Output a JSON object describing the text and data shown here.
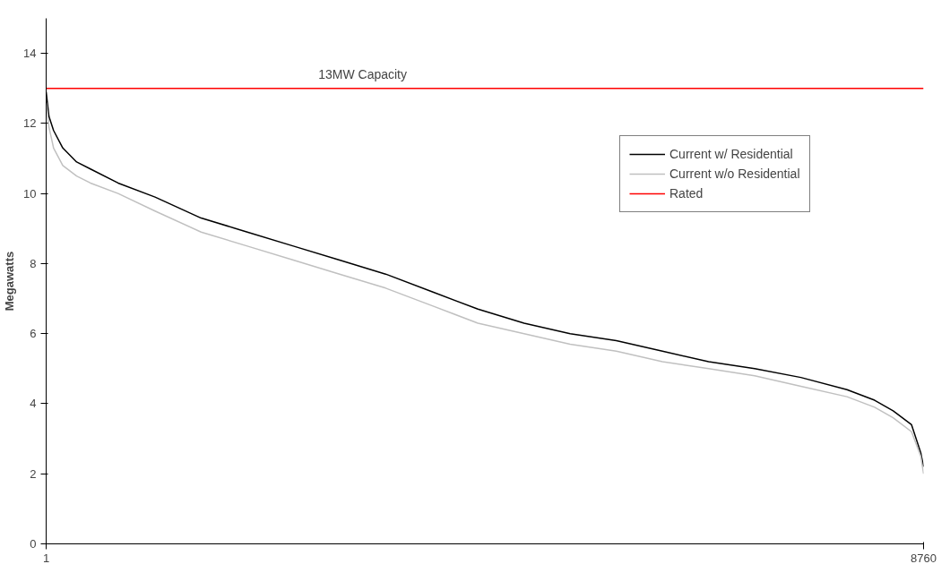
{
  "chart_data": {
    "type": "line",
    "ylabel": "Megawatts",
    "x": [
      1,
      29,
      75,
      167,
      305,
      443,
      719,
      1088,
      1548,
      2009,
      2469,
      2930,
      3390,
      3851,
      4311,
      4772,
      5232,
      5693,
      6153,
      6614,
      7074,
      7535,
      7995,
      8271,
      8456,
      8640,
      8732,
      8760
    ],
    "series": [
      {
        "name": "Current w/ Residential",
        "color": "#000000",
        "values": [
          12.9,
          12.2,
          11.8,
          11.3,
          10.9,
          10.7,
          10.3,
          9.9,
          9.3,
          8.9,
          8.5,
          8.1,
          7.7,
          7.2,
          6.7,
          6.3,
          6.0,
          5.8,
          5.5,
          5.2,
          5.0,
          4.75,
          4.4,
          4.1,
          3.8,
          3.4,
          2.6,
          2.2
        ]
      },
      {
        "name": "Current w/o Residential",
        "color": "#c0c0c0",
        "values": [
          12.6,
          11.9,
          11.3,
          10.8,
          10.5,
          10.3,
          10.0,
          9.5,
          8.9,
          8.5,
          8.1,
          7.7,
          7.3,
          6.8,
          6.3,
          6.0,
          5.7,
          5.5,
          5.2,
          5.0,
          4.8,
          4.5,
          4.2,
          3.9,
          3.6,
          3.2,
          2.5,
          2.0
        ]
      },
      {
        "name": "Rated",
        "color": "#ff0000",
        "x": [
          1,
          8760
        ],
        "values": [
          13,
          13
        ]
      }
    ],
    "annotations": [
      {
        "text": "13MW Capacity",
        "x": 3160,
        "y": 13
      }
    ],
    "xlim": [
      1,
      8760
    ],
    "xticks": [
      1,
      8760
    ],
    "ylim": [
      0,
      15
    ],
    "yticks": [
      0,
      2,
      4,
      6,
      8,
      10,
      12,
      14
    ],
    "grid": false,
    "legend": "top right",
    "marker": "none",
    "line_style": "solid"
  }
}
